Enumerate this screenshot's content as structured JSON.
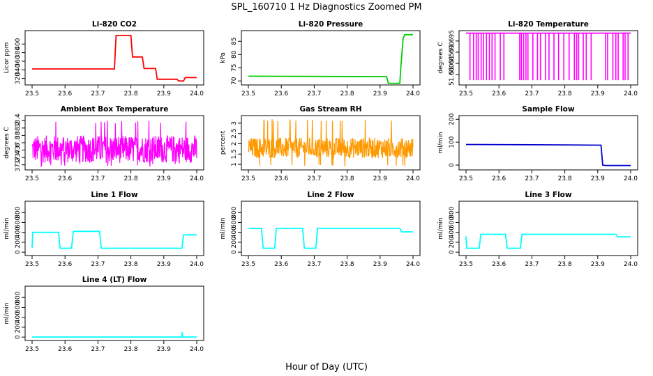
{
  "figure": {
    "title": "SPL_160710  1 Hz Diagnostics Zoomed PM",
    "xlabel": "Hour of Day (UTC)"
  },
  "chart_data": [
    {
      "type": "line",
      "title": "Li-820 CO2",
      "ylabel": "Licor ppm",
      "color": "#ff0000",
      "xlim": [
        23.5,
        24.0
      ],
      "ylim": [
        308,
        428
      ],
      "xticks": [
        "23.5",
        "23.6",
        "23.7",
        "23.8",
        "23.9",
        "24.0"
      ],
      "yticks": [
        320,
        340,
        360,
        380,
        400
      ],
      "x": [
        23.5,
        23.75,
        23.755,
        23.8,
        23.805,
        23.835,
        23.84,
        23.875,
        23.88,
        23.94,
        23.945,
        23.96,
        23.965,
        24.0
      ],
      "y": [
        342,
        342,
        420,
        420,
        370,
        370,
        343,
        343,
        318,
        318,
        314,
        314,
        322,
        322
      ]
    },
    {
      "type": "line",
      "title": "Li-820 Pressure",
      "ylabel": "kPa",
      "color": "#00cc00",
      "xlim": [
        23.5,
        24.0
      ],
      "ylim": [
        69,
        88.5
      ],
      "xticks": [
        "23.5",
        "23.6",
        "23.7",
        "23.8",
        "23.9",
        "24.0"
      ],
      "yticks": [
        70,
        75,
        80,
        85
      ],
      "x": [
        23.5,
        23.92,
        23.925,
        23.96,
        23.963,
        23.97,
        23.975,
        24.0
      ],
      "y": [
        71.8,
        71.6,
        69.1,
        69.1,
        75,
        86,
        87.5,
        87.5
      ]
    },
    {
      "type": "line",
      "title": "Li-820 Temperature",
      "ylabel": "degrees C",
      "color": "#ff00ff",
      "xlim": [
        23.5,
        24.0
      ],
      "ylim": [
        51.676,
        51.699
      ],
      "xticks": [
        "23.5",
        "23.6",
        "23.7",
        "23.8",
        "23.9",
        "24.0"
      ],
      "yticks": [
        51.68,
        51.685,
        51.69,
        51.695
      ],
      "x": [
        23.5,
        24.0
      ],
      "y": [
        51.6985,
        51.6985
      ],
      "dips_to": 51.6775,
      "dip_x": [
        23.512,
        23.523,
        23.531,
        23.537,
        23.546,
        23.553,
        23.562,
        23.571,
        23.579,
        23.588,
        23.604,
        23.615,
        23.663,
        23.668,
        23.675,
        23.682,
        23.688,
        23.703,
        23.717,
        23.726,
        23.741,
        23.752,
        23.767,
        23.781,
        23.797,
        23.813,
        23.829,
        23.836,
        23.842,
        23.856,
        23.865,
        23.88,
        23.924,
        23.93,
        23.946,
        23.955,
        23.962,
        23.977,
        23.983,
        23.992
      ]
    },
    {
      "type": "line",
      "title": "Ambient Box Temperature",
      "ylabel": "degrees C",
      "color": "#ff00ff",
      "xlim": [
        23.5,
        24.0
      ],
      "ylim": [
        37.1,
        38.5
      ],
      "xticks": [
        "23.5",
        "23.6",
        "23.7",
        "23.8",
        "23.9",
        "24.0"
      ],
      "yticks": [
        37.2,
        37.4,
        37.6,
        37.8,
        38.0,
        38.2,
        38.4
      ],
      "noise": {
        "center": 37.6,
        "low": 37.25,
        "high": 38.0,
        "spike_low": 37.15,
        "spike_high": 38.4
      }
    },
    {
      "type": "line",
      "title": "Gas Stream RH",
      "ylabel": "percent",
      "color": "#ff9900",
      "xlim": [
        23.5,
        24.0
      ],
      "ylim": [
        0.8,
        3.3
      ],
      "xticks": [
        "23.5",
        "23.6",
        "23.7",
        "23.8",
        "23.9",
        "24.0"
      ],
      "yticks": [
        1.0,
        1.5,
        2.0,
        2.5,
        3.0
      ],
      "noise": {
        "center": 1.85,
        "low": 1.3,
        "high": 2.3,
        "spike_low": 0.9,
        "spike_high": 3.2
      }
    },
    {
      "type": "line",
      "title": "Sample Flow",
      "ylabel": "ml/min",
      "color": "#0000cc",
      "xlim": [
        23.5,
        24.0
      ],
      "ylim": [
        -15,
        210
      ],
      "xticks": [
        "23.5",
        "23.6",
        "23.7",
        "23.8",
        "23.9",
        "24.0"
      ],
      "yticks": [
        0,
        100,
        200
      ],
      "x": [
        23.5,
        23.8,
        23.91,
        23.915,
        23.925,
        24.0
      ],
      "y": [
        90,
        88,
        87,
        0,
        -2,
        -2
      ]
    },
    {
      "type": "line",
      "title": "Line 1 Flow",
      "ylabel": "ml/min",
      "color": "#00ffff",
      "xlim": [
        23.5,
        24.0
      ],
      "ylim": [
        -40,
        1000
      ],
      "xticks": [
        "23.5",
        "23.6",
        "23.7",
        "23.8",
        "23.9",
        "24.0"
      ],
      "yticks": [
        0,
        200,
        400,
        600,
        800
      ],
      "x": [
        23.5,
        23.502,
        23.58,
        23.585,
        23.62,
        23.625,
        23.705,
        23.71,
        23.955,
        23.96,
        24.0
      ],
      "y": [
        90,
        400,
        400,
        80,
        80,
        420,
        420,
        80,
        80,
        350,
        350
      ]
    },
    {
      "type": "line",
      "title": "Line 2 Flow",
      "ylabel": "ml/min",
      "color": "#00ffff",
      "xlim": [
        23.5,
        24.0
      ],
      "ylim": [
        -40,
        1000
      ],
      "xticks": [
        "23.5",
        "23.6",
        "23.7",
        "23.8",
        "23.9",
        "24.0"
      ],
      "yticks": [
        0,
        200,
        400,
        600,
        800
      ],
      "x": [
        23.5,
        23.54,
        23.545,
        23.58,
        23.585,
        23.665,
        23.67,
        23.705,
        23.71,
        23.96,
        23.965,
        24.0
      ],
      "y": [
        480,
        480,
        80,
        80,
        480,
        480,
        80,
        80,
        480,
        480,
        410,
        410
      ]
    },
    {
      "type": "line",
      "title": "Line 3 Flow",
      "ylabel": "ml/min",
      "color": "#00ffff",
      "xlim": [
        23.5,
        24.0
      ],
      "ylim": [
        -40,
        1000
      ],
      "xticks": [
        "23.5",
        "23.6",
        "23.7",
        "23.8",
        "23.9",
        "24.0"
      ],
      "yticks": [
        0,
        200,
        400,
        600,
        800
      ],
      "x": [
        23.5,
        23.502,
        23.54,
        23.545,
        23.62,
        23.625,
        23.665,
        23.67,
        23.955,
        23.96,
        24.0
      ],
      "y": [
        320,
        80,
        80,
        360,
        360,
        80,
        80,
        360,
        360,
        310,
        310
      ]
    },
    {
      "type": "line",
      "title": "Line 4 (LT) Flow",
      "ylabel": "ml/min",
      "color": "#00ffff",
      "xlim": [
        23.5,
        24.0
      ],
      "ylim": [
        -40,
        1000
      ],
      "xticks": [
        "23.5",
        "23.6",
        "23.7",
        "23.8",
        "23.9",
        "24.0"
      ],
      "yticks": [
        0,
        200,
        400,
        600,
        800
      ],
      "x": [
        23.5,
        23.955,
        23.956,
        23.957,
        24.0
      ],
      "y": [
        2,
        2,
        100,
        2,
        2
      ]
    }
  ]
}
